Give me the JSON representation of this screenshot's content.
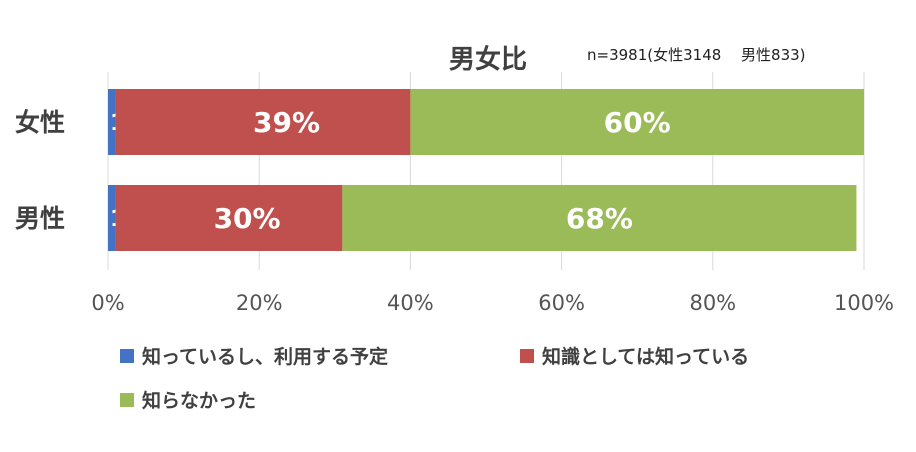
{
  "chart_data": {
    "type": "bar",
    "orientation": "horizontal",
    "stacked": true,
    "title": "男女比",
    "note": "n=3981(女性3148　 男性833)",
    "categories": [
      "女性",
      "男性"
    ],
    "series": [
      {
        "name": "知っているし、利用する予定",
        "color": "#4472c4",
        "values": [
          1,
          1
        ],
        "labels": [
          "1%",
          "1%"
        ]
      },
      {
        "name": "知識としては知っている",
        "color": "#c0504d",
        "values": [
          39,
          30
        ],
        "labels": [
          "39%",
          "30%"
        ]
      },
      {
        "name": "知らなかった",
        "color": "#9bbb59",
        "values": [
          60,
          68
        ],
        "labels": [
          "60%",
          "68%"
        ]
      }
    ],
    "xlim": [
      0,
      100
    ],
    "xticks": [
      "0%",
      "20%",
      "40%",
      "60%",
      "80%",
      "100%"
    ],
    "grid": true,
    "legend_position": "bottom"
  }
}
